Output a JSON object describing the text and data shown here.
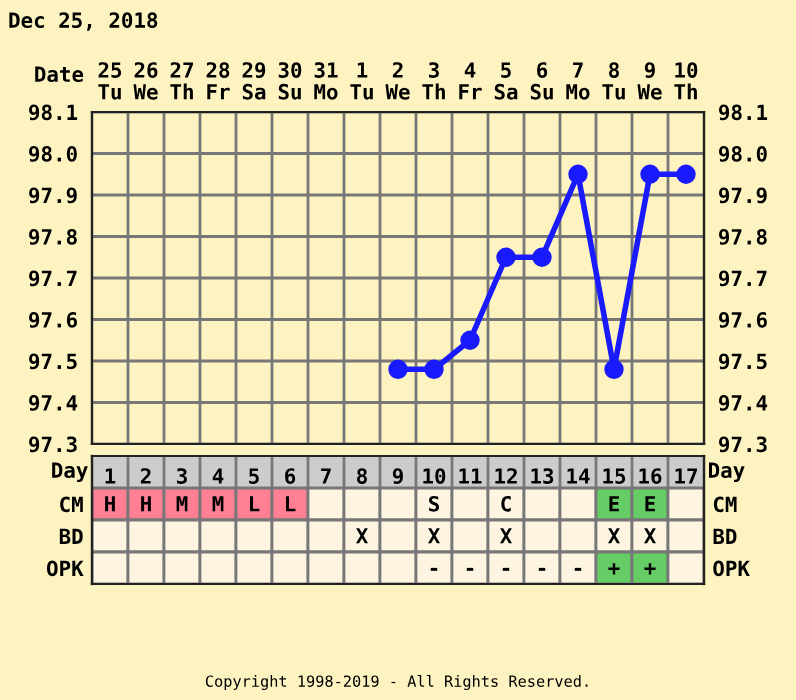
{
  "chart_data": [
    {
      "type": "line",
      "title": "Dec 25, 2018",
      "xlabel": "Date",
      "categories": [
        "25\nTu",
        "26\nWe",
        "27\nTh",
        "28\nFr",
        "29\nSa",
        "30\nSu",
        "31\nMo",
        "1\nTu",
        "2\nWe",
        "3\nTh",
        "4\nFr",
        "5\nSa",
        "6\nSu",
        "7\nMo",
        "8\nTu",
        "9\nWe",
        "10\nTh"
      ],
      "series": [
        {
          "color": "#1a1aff",
          "values": [
            null,
            null,
            null,
            null,
            null,
            null,
            null,
            null,
            97.48,
            97.48,
            97.55,
            97.75,
            97.75,
            97.95,
            97.48,
            97.95,
            97.95
          ]
        }
      ],
      "ylim": [
        97.3,
        98.1
      ],
      "yticks": [
        97.3,
        97.4,
        97.5,
        97.6,
        97.7,
        97.8,
        97.9,
        {
          "value": 98.0,
          "label": "98.0"
        },
        98.1
      ],
      "y2lim": [
        97.3,
        98.1
      ],
      "y2ticks": [
        97.3,
        97.4,
        97.5,
        97.6,
        97.7,
        97.8,
        97.9,
        {
          "value": 98.0,
          "label": "98.0"
        },
        98.1
      ],
      "grid": true,
      "marker": "circle",
      "line_style": "solid"
    },
    {
      "type": "heatmap",
      "xlabel": "Day",
      "categories": [
        "1",
        "2",
        "3",
        "4",
        "5",
        "6",
        "7",
        "8",
        "9",
        "10",
        "11",
        "12",
        "13",
        "14",
        "15",
        "16",
        "17"
      ],
      "y_categories": [
        "CM",
        "BD",
        "OPK"
      ],
      "y2_categories": [
        "CM",
        "BD",
        "OPK"
      ],
      "cells": [
        [
          null,
          null,
          null,
          null,
          null,
          null,
          null,
          null,
          null,
          null,
          null,
          null,
          null,
          null,
          null,
          null,
          null
        ],
        [
          null,
          null,
          null,
          null,
          null,
          null,
          null,
          null,
          null,
          null,
          null,
          null,
          null,
          null,
          null,
          null,
          null
        ],
        [
          null,
          null,
          null,
          null,
          null,
          null,
          null,
          null,
          null,
          null,
          null,
          null,
          null,
          null,
          null,
          null,
          null
        ]
      ],
      "colors": [
        [
          "#ff8095",
          "#ff8095",
          "#ff8095",
          "#ff8095",
          "#ff8095",
          "#ff8095",
          "#fdf5e2",
          "#fdf5e2",
          "#fdf5e2",
          "#fdf5e2",
          "#fdf5e2",
          "#fdf5e2",
          "#fdf5e2",
          "#fdf5e2",
          "#66cc66",
          "#66cc66",
          "#fdf5e2"
        ],
        [
          "#fdf5e2",
          "#fdf5e2",
          "#fdf5e2",
          "#fdf5e2",
          "#fdf5e2",
          "#fdf5e2",
          "#fdf5e2",
          "#fdf5e2",
          "#fdf5e2",
          "#fdf5e2",
          "#fdf5e2",
          "#fdf5e2",
          "#fdf5e2",
          "#fdf5e2",
          "#fdf5e2",
          "#fdf5e2",
          "#fdf5e2"
        ],
        [
          "#fdf5e2",
          "#fdf5e2",
          "#fdf5e2",
          "#fdf5e2",
          "#fdf5e2",
          "#fdf5e2",
          "#fdf5e2",
          "#fdf5e2",
          "#fdf5e2",
          "#fdf5e2",
          "#fdf5e2",
          "#fdf5e2",
          "#fdf5e2",
          "#fdf5e2",
          "#66cc66",
          "#66cc66",
          "#fdf5e2"
        ]
      ],
      "cell_labels": [
        [
          "H",
          "H",
          "M",
          "M",
          "L",
          "L",
          null,
          null,
          null,
          "S",
          null,
          "C",
          null,
          null,
          "E",
          "E",
          null
        ],
        [
          null,
          null,
          null,
          null,
          null,
          null,
          null,
          "X",
          null,
          "X",
          null,
          "X",
          null,
          null,
          "X",
          "X",
          null
        ],
        [
          null,
          null,
          null,
          null,
          null,
          null,
          null,
          null,
          null,
          "-",
          "-",
          "-",
          "-",
          "-",
          "+",
          "+",
          null
        ]
      ],
      "annotations": [
        "Copyright 1998-2019 - All Rights Reserved."
      ]
    }
  ]
}
